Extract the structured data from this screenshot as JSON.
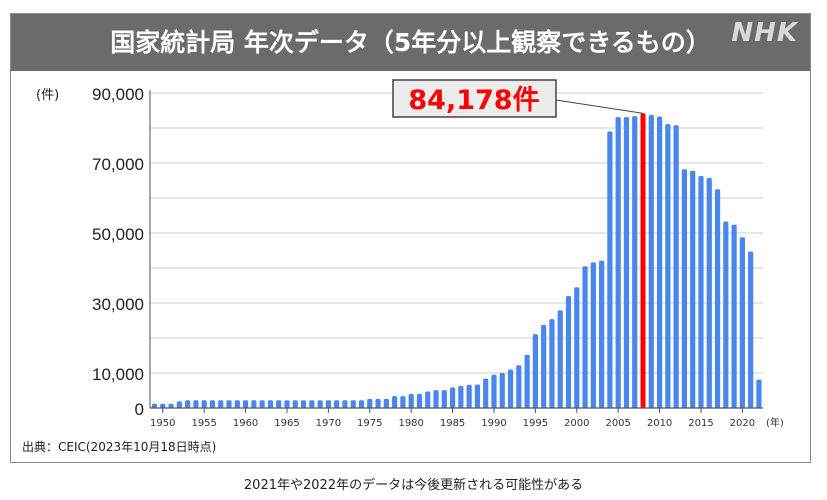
{
  "title": "国家統計局 年次データ（5年分以上観察できるもの）",
  "logo": "NHK",
  "source": "出典：CEIC(2023年10月18日時点)",
  "caption": "2021年や2022年のデータは今後更新される可能性がある",
  "callout": "84,178件",
  "colors": {
    "bar": "#4a86f0",
    "highlight": "#ff0000",
    "titlebar": "#6b6b6b"
  },
  "chart_data": {
    "type": "bar",
    "title": "国家統計局 年次データ（5年分以上観察できるもの）",
    "ylabel": "(件)",
    "xlabel": "(年)",
    "ylim": [
      0,
      90000
    ],
    "yticks": [
      0,
      10000,
      30000,
      50000,
      70000,
      90000
    ],
    "ytick_labels": [
      "0",
      "10,000",
      "30,000",
      "50,000",
      "70,000",
      "90,000"
    ],
    "xtick_labels": [
      "1950",
      "1955",
      "1960",
      "1965",
      "1970",
      "1975",
      "1980",
      "1985",
      "1990",
      "1995",
      "2000",
      "2005",
      "2010",
      "2015",
      "2020"
    ],
    "grid": true,
    "highlight_year": 2008,
    "annotation": "84,178件",
    "x": [
      1949,
      1950,
      1951,
      1952,
      1953,
      1954,
      1955,
      1956,
      1957,
      1958,
      1959,
      1960,
      1961,
      1962,
      1963,
      1964,
      1965,
      1966,
      1967,
      1968,
      1969,
      1970,
      1971,
      1972,
      1973,
      1974,
      1975,
      1976,
      1977,
      1978,
      1979,
      1980,
      1981,
      1982,
      1983,
      1984,
      1985,
      1986,
      1987,
      1988,
      1989,
      1990,
      1991,
      1992,
      1993,
      1994,
      1995,
      1996,
      1997,
      1998,
      1999,
      2000,
      2001,
      2002,
      2003,
      2004,
      2005,
      2006,
      2007,
      2008,
      2009,
      2010,
      2011,
      2012,
      2013,
      2014,
      2015,
      2016,
      2017,
      2018,
      2019,
      2020,
      2021,
      2022
    ],
    "values": [
      1200,
      1200,
      1200,
      1900,
      2200,
      2200,
      2200,
      2200,
      2200,
      2200,
      2200,
      2200,
      2200,
      2200,
      2200,
      2200,
      2200,
      2200,
      2200,
      2200,
      2200,
      2200,
      2200,
      2200,
      2200,
      2200,
      2600,
      2600,
      2600,
      3400,
      3400,
      4000,
      4000,
      4700,
      5100,
      5100,
      5900,
      6300,
      6600,
      6700,
      8400,
      9500,
      10000,
      11000,
      12200,
      15200,
      21100,
      23700,
      25400,
      27900,
      32000,
      34500,
      40500,
      41600,
      42100,
      79000,
      83100,
      83100,
      83400,
      84178,
      83700,
      83300,
      81100,
      80800,
      68200,
      67800,
      66300,
      65700,
      62500,
      53300,
      52400,
      48800,
      44700,
      8100
    ]
  }
}
